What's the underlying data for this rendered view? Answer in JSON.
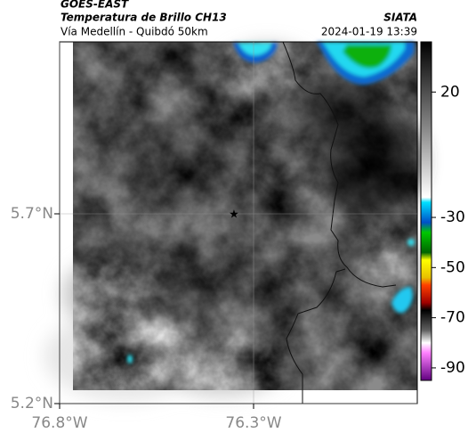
{
  "header": {
    "title": "GOES-EAST",
    "subtitle": "Temperatura de Brillo CH13",
    "region": "Vía Medellín - Quibdó 50km",
    "source": "SIATA",
    "datetime": "2024-01-19 13:39"
  },
  "map": {
    "lon_lim": [
      -76.8,
      -75.878
    ],
    "lat_lim": [
      5.2,
      6.153
    ],
    "lon_ticks": [
      {
        "value": -76.8,
        "label": "76.8°W"
      },
      {
        "value": -76.3,
        "label": "76.3°W"
      }
    ],
    "lat_ticks": [
      {
        "value": 5.7,
        "label": "5.7°N"
      },
      {
        "value": 5.2,
        "label": "5.2°N"
      }
    ],
    "grid": true
  },
  "colorbar": {
    "lim": [
      40,
      -95
    ],
    "ticks": [
      20,
      -30,
      -50,
      -70,
      -90
    ],
    "stops": [
      {
        "value": 40,
        "color": "#000000"
      },
      {
        "value": 5,
        "color": "#8a8a8a"
      },
      {
        "value": -22,
        "color": "#ffffff"
      },
      {
        "value": -24,
        "color": "#00e0ff"
      },
      {
        "value": -32,
        "color": "#0050c8"
      },
      {
        "value": -36,
        "color": "#00c800"
      },
      {
        "value": -44,
        "color": "#006400"
      },
      {
        "value": -47,
        "color": "#ffff00"
      },
      {
        "value": -54,
        "color": "#e8c000"
      },
      {
        "value": -57,
        "color": "#ff4000"
      },
      {
        "value": -64,
        "color": "#a00000"
      },
      {
        "value": -67,
        "color": "#000000"
      },
      {
        "value": -75,
        "color": "#606060"
      },
      {
        "value": -80,
        "color": "#ffffff"
      },
      {
        "value": -84,
        "color": "#ff80ff"
      },
      {
        "value": -95,
        "color": "#600080"
      }
    ]
  }
}
